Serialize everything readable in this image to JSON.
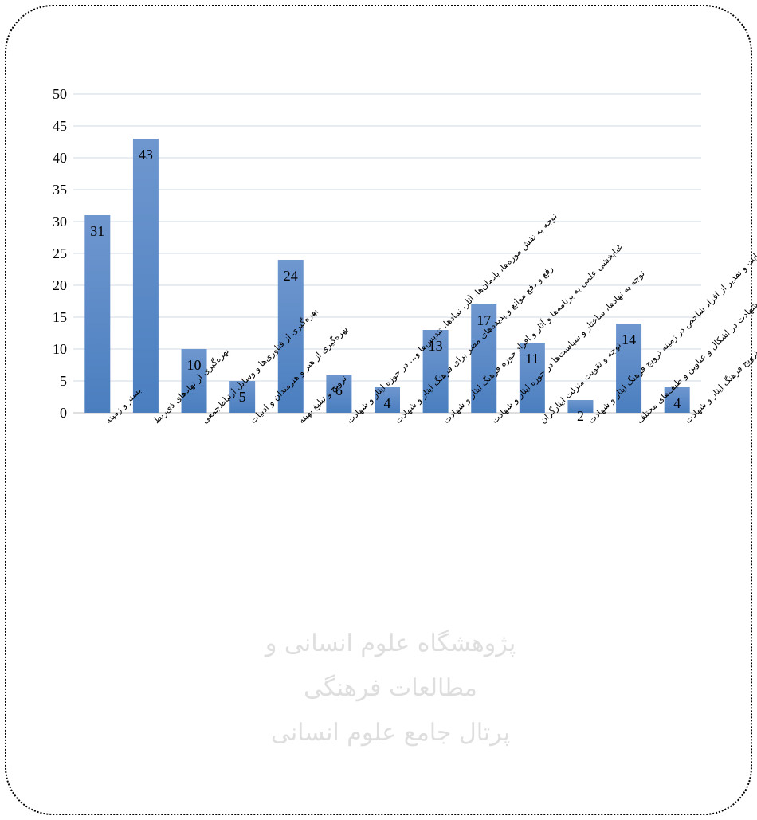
{
  "chart_data": {
    "type": "bar",
    "title": "",
    "xlabel": "",
    "ylabel": "",
    "ylim": [
      0,
      50
    ],
    "yticks": [
      0,
      5,
      10,
      15,
      20,
      25,
      30,
      35,
      40,
      45,
      50
    ],
    "grid": true,
    "legend": "none",
    "bar_color": "#4a7ebf",
    "categories": [
      "بستر و زمینه",
      "بهره‌گیری از نهادهای ذی‌ربط",
      "بهره‌گیری از فناوری‌ها و وسایل ارتباط‌جمعی",
      "بهره‌گیری از هنر و هنرمندان و ادبیات",
      "ترویج و تبلیغ بهینه",
      "توجه به نقش موزه‌ها، یادمان‌ها، آثار، نمادها، تندیس‌ها و... در حوزه ایثار و شهادت",
      "رفع و دفع موانع و پدیده‌های مضر برای فرهنگ ایثار و شهادت",
      "غنابخشی علمی به برنامه‌ها و آثار و افراد حوزه فرهنگ ایثار و شهادت",
      "توجه به نهادها، ساختار و سیاست‌ها در حوزه ایثار و شهادت",
      "توجه و تقویت منزلت ایثارگران",
      "حمایت و تقدیر از افراد شاخص در زمینه ترویج فرهنگ ایثار و شهادت",
      "ترویج فرهنگ ایثار و شهادت در اشکال و عناوین و طیف‌های مختلف",
      "نظارت و ارزیابی علمی اثربخشی برنامه‌ها و اقدامات در زمینه ترویج فرهنگ ایثار و شهادت"
    ],
    "values": [
      31,
      43,
      10,
      5,
      24,
      6,
      4,
      13,
      17,
      11,
      2,
      14,
      4
    ]
  },
  "watermark": {
    "line1": "پژوهشگاه علوم انسانی و مطالعات فرهنگی",
    "line2": "پرتال جامع علوم انسانی"
  }
}
